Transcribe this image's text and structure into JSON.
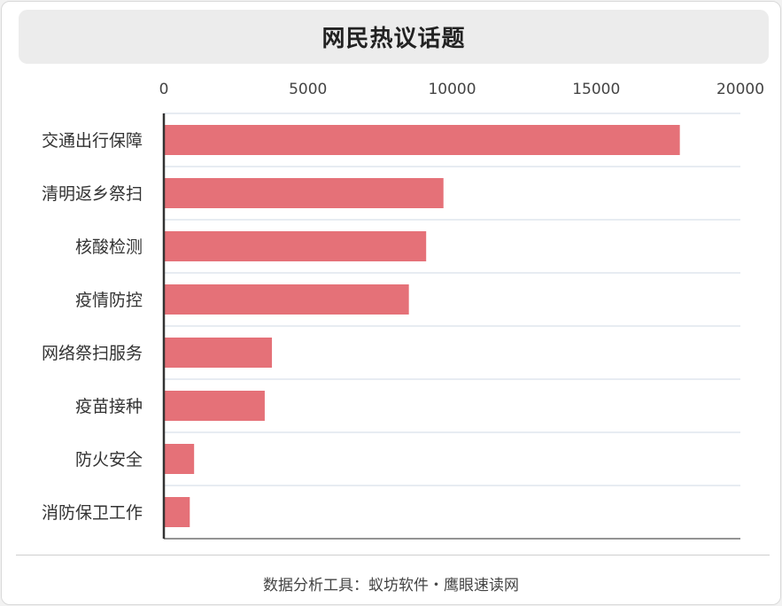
{
  "title": "网民热议话题",
  "footer": "数据分析工具：蚁坊软件・鹰眼速读网",
  "colors": {
    "bar": "#e57178",
    "grid": "#dfe6ee",
    "axis": "#333333",
    "text": "#333333",
    "tick": "#444444"
  },
  "chart_data": {
    "type": "bar",
    "orientation": "horizontal",
    "categories": [
      "交通出行保障",
      "清明返乡祭扫",
      "核酸检测",
      "疫情防控",
      "网络祭扫服务",
      "疫苗接种",
      "防火安全",
      "消防保卫工作"
    ],
    "values": [
      17900,
      9700,
      9100,
      8500,
      3750,
      3500,
      1050,
      900
    ],
    "xlim": [
      0,
      20000
    ],
    "xticks": [
      0,
      5000,
      10000,
      15000,
      20000
    ],
    "xtick_labels": [
      "0",
      "5000",
      "10000",
      "15000",
      "20000"
    ],
    "xaxis_position": "top",
    "grid": true,
    "legend": "none"
  }
}
